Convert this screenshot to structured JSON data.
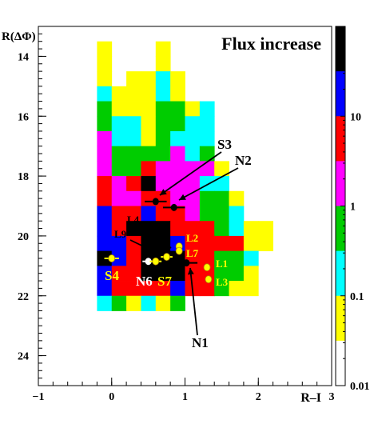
{
  "chart_data": {
    "type": "heatmap",
    "title": "Flux increase",
    "xlabel": "R–I",
    "ylabel": "R(ΔΦ)",
    "xlim": [
      -1,
      3
    ],
    "ylim": [
      25,
      13
    ],
    "x_ticks": [
      -1,
      0,
      1,
      2,
      3
    ],
    "x_tick_labels": [
      "−1",
      "0",
      "1",
      "2",
      "3"
    ],
    "y_ticks": [
      14,
      16,
      18,
      20,
      22,
      24
    ],
    "y_tick_labels": [
      "14",
      "16",
      "18",
      "20",
      "22",
      "24"
    ],
    "colorbar": {
      "scale": "log",
      "range": [
        0.01,
        100
      ],
      "tick_values": [
        10,
        1,
        0.1,
        0.01
      ],
      "tick_labels": [
        "10",
        "1",
        "0.1",
        "0.01"
      ],
      "bands_top_to_bottom": [
        "#000000",
        "#0000ff",
        "#ff0000",
        "#ff00ff",
        "#00cc00",
        "#00ffff",
        "#ffff00",
        "#ffffff"
      ]
    },
    "cell_size": {
      "dx": 0.2,
      "dy": 0.5
    },
    "grid_origin": {
      "x": -0.2,
      "y": 13.5
    },
    "color_codes": {
      "Y": "#ffff00",
      "C": "#00ffff",
      "G": "#00cc00",
      "M": "#ff00ff",
      "R": "#ff0000",
      "B": "#0000ff",
      "K": "#000000"
    },
    "cell_rows": [
      "Y...Y.......",
      "Y...Y.......",
      "Y.YYCY......",
      "CYYYCY......",
      "GYYYGGYC....",
      "GCCYGGCC....",
      "MCCYGCCC....",
      "MGGGGMCG....",
      "MGGRMMMMY...",
      "RMRKMMMCC...",
      "RMMRRMMGGY..",
      "BRRBRRMGGC..",
      "BRKKKRRRGCYY",
      "BBRKKBRRRRYY",
      "KBRKKKRRGGC.",
      "BRRKKKRRGGY.",
      "BRRRRBRRGYY.",
      "CGYCYG......"
    ],
    "labels": [
      {
        "text": "S3",
        "color": "#000000"
      },
      {
        "text": "N2",
        "color": "#000000"
      },
      {
        "text": "L4",
        "color": "#000000"
      },
      {
        "text": "L9",
        "color": "#000000"
      },
      {
        "text": "L2",
        "color": "#ffff00"
      },
      {
        "text": "L7",
        "color": "#ffff00"
      },
      {
        "text": "L1",
        "color": "#ffff00"
      },
      {
        "text": "L3",
        "color": "#ffff00"
      },
      {
        "text": "S4",
        "color": "#ffff00"
      },
      {
        "text": "N6",
        "color": "#ffffff"
      },
      {
        "text": "S7",
        "color": "#ffff00"
      },
      {
        "text": "N1",
        "color": "#000000"
      }
    ],
    "points": [
      {
        "x": 0.6,
        "y": 18.85,
        "xerr": 0.15,
        "color": "#000000"
      },
      {
        "x": 0.85,
        "y": 19.05,
        "xerr": 0.15,
        "color": "#000000"
      },
      {
        "x": 1.02,
        "y": 20.9,
        "xerr": 0.15,
        "color": "#000000"
      },
      {
        "x": 0.0,
        "y": 20.75,
        "xerr": 0.1,
        "color": "#ffff00"
      },
      {
        "x": 0.5,
        "y": 20.85,
        "xerr": 0.08,
        "color": "#ffffff"
      },
      {
        "x": 0.6,
        "y": 20.85,
        "xerr": 0.08,
        "color": "#ffff00"
      },
      {
        "x": 0.75,
        "y": 20.7,
        "xerr": 0.08,
        "color": "#ffff00"
      },
      {
        "x": 0.92,
        "y": 20.35,
        "xerr": 0,
        "color": "#ffff00"
      },
      {
        "x": 0.92,
        "y": 20.5,
        "xerr": 0,
        "color": "#ffff00"
      },
      {
        "x": 1.3,
        "y": 21.05,
        "xerr": 0,
        "color": "#ffff00"
      },
      {
        "x": 1.32,
        "y": 21.45,
        "xerr": 0,
        "color": "#ffff00"
      }
    ]
  }
}
